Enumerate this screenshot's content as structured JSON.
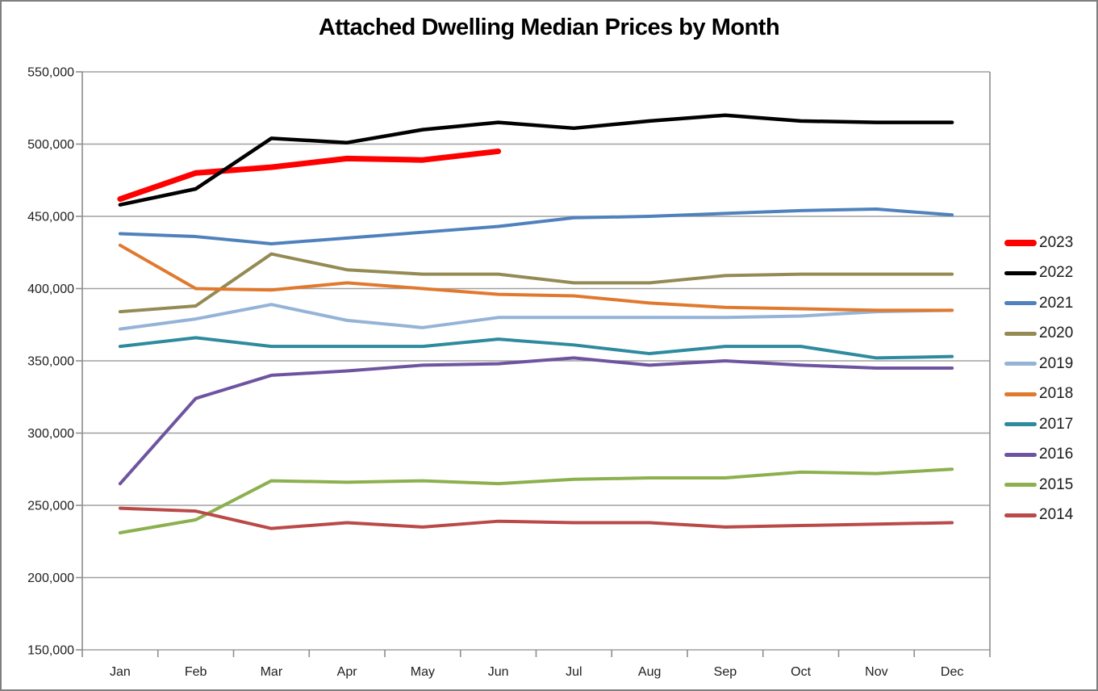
{
  "title": "Attached Dwelling Median Prices by Month",
  "chart_data": {
    "type": "line",
    "title": "Attached Dwelling Median Prices by Month",
    "xlabel": "",
    "ylabel": "",
    "grid": "horizontal",
    "legend_position": "right",
    "x_categories": [
      "Jan",
      "Feb",
      "Mar",
      "Apr",
      "May",
      "Jun",
      "Jul",
      "Aug",
      "Sep",
      "Oct",
      "Nov",
      "Dec"
    ],
    "y_axis": {
      "min": 150000,
      "max": 550000,
      "step": 50000,
      "tick_labels": [
        "150,000",
        "200,000",
        "250,000",
        "300,000",
        "350,000",
        "400,000",
        "450,000",
        "500,000",
        "550,000"
      ]
    },
    "series": [
      {
        "name": "2023",
        "color": "#FF0000",
        "line_width": 7,
        "values": [
          462000,
          480000,
          484000,
          490000,
          489000,
          495000
        ]
      },
      {
        "name": "2022",
        "color": "#000000",
        "line_width": 4.5,
        "values": [
          458000,
          469000,
          504000,
          501000,
          510000,
          515000,
          511000,
          516000,
          520000,
          516000,
          515000,
          515000
        ]
      },
      {
        "name": "2021",
        "color": "#4F81BD",
        "line_width": 4,
        "values": [
          438000,
          436000,
          431000,
          435000,
          439000,
          443000,
          449000,
          450000,
          452000,
          454000,
          455000,
          451000
        ]
      },
      {
        "name": "2020",
        "color": "#948A54",
        "line_width": 4,
        "values": [
          384000,
          388000,
          424000,
          413000,
          410000,
          410000,
          404000,
          404000,
          409000,
          410000,
          410000,
          410000
        ]
      },
      {
        "name": "2019",
        "color": "#95B3D7",
        "line_width": 4,
        "values": [
          372000,
          379000,
          389000,
          378000,
          373000,
          380000,
          380000,
          380000,
          380000,
          381000,
          384000,
          385000
        ]
      },
      {
        "name": "2018",
        "color": "#E0792E",
        "line_width": 4,
        "values": [
          430000,
          400000,
          399000,
          404000,
          400000,
          396000,
          395000,
          390000,
          387000,
          386000,
          385000,
          385000
        ]
      },
      {
        "name": "2017",
        "color": "#2E8A9E",
        "line_width": 4,
        "values": [
          360000,
          366000,
          360000,
          360000,
          360000,
          365000,
          361000,
          355000,
          360000,
          360000,
          352000,
          353000
        ]
      },
      {
        "name": "2016",
        "color": "#6E54A0",
        "line_width": 4,
        "values": [
          265000,
          324000,
          340000,
          343000,
          347000,
          348000,
          352000,
          347000,
          350000,
          347000,
          345000,
          345000
        ]
      },
      {
        "name": "2015",
        "color": "#8CB04E",
        "line_width": 4,
        "values": [
          231000,
          240000,
          267000,
          266000,
          267000,
          265000,
          268000,
          269000,
          269000,
          273000,
          272000,
          275000
        ]
      },
      {
        "name": "2014",
        "color": "#B94A48",
        "line_width": 4,
        "values": [
          248000,
          246000,
          234000,
          238000,
          235000,
          239000,
          238000,
          238000,
          235000,
          236000,
          237000,
          238000
        ]
      }
    ]
  },
  "style": {
    "gridline_color": "#A0A0A0",
    "axis_color": "#8E8E8E",
    "frame_border_color": "#7F7F7F",
    "label_color": "#202020"
  }
}
